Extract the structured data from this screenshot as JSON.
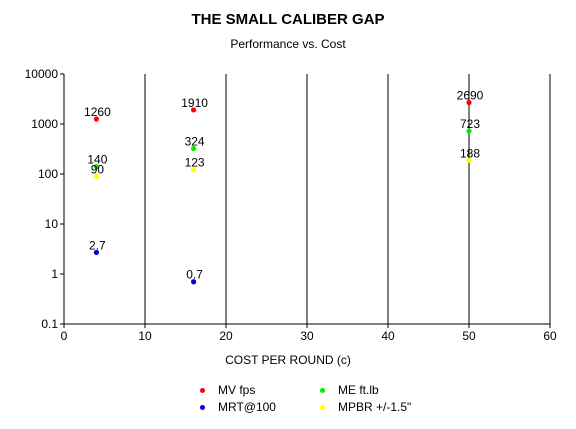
{
  "chart_data": {
    "type": "scatter",
    "title": "THE SMALL CALIBER GAP",
    "subtitle": "Performance vs. Cost",
    "xlabel": "COST PER ROUND (c)",
    "ylabel": "",
    "x_scale": "linear",
    "y_scale": "log",
    "xlim": [
      0,
      60
    ],
    "ylim": [
      0.1,
      10000
    ],
    "x_ticks": [
      "0",
      "10",
      "20",
      "30",
      "40",
      "50",
      "60"
    ],
    "y_ticks": [
      "0.1",
      "1",
      "10",
      "100",
      "1000",
      "10000"
    ],
    "grid": "vertical lines at each x tick",
    "legend_position": "bottom",
    "series": [
      {
        "name": "MV fps",
        "color": "#ff0000",
        "points": [
          {
            "x": 4,
            "y": 1260,
            "label": "1260"
          },
          {
            "x": 16,
            "y": 1910,
            "label": "1910"
          },
          {
            "x": 50,
            "y": 2690,
            "label": "2690"
          }
        ]
      },
      {
        "name": "ME ft.lb",
        "color": "#00ee00",
        "points": [
          {
            "x": 4,
            "y": 140,
            "label": "140"
          },
          {
            "x": 16,
            "y": 324,
            "label": "324"
          },
          {
            "x": 50,
            "y": 723,
            "label": "723"
          }
        ]
      },
      {
        "name": "MRT@100",
        "color": "#0000cc",
        "points": [
          {
            "x": 4,
            "y": 2.7,
            "label": "2.7"
          },
          {
            "x": 16,
            "y": 0.7,
            "label": "0.7"
          }
        ]
      },
      {
        "name": "MPBR +/-1.5\"",
        "color": "#ffff00",
        "points": [
          {
            "x": 4,
            "y": 90,
            "label": "90"
          },
          {
            "x": 16,
            "y": 123,
            "label": "123"
          },
          {
            "x": 50,
            "y": 188,
            "label": "188"
          }
        ]
      }
    ]
  }
}
